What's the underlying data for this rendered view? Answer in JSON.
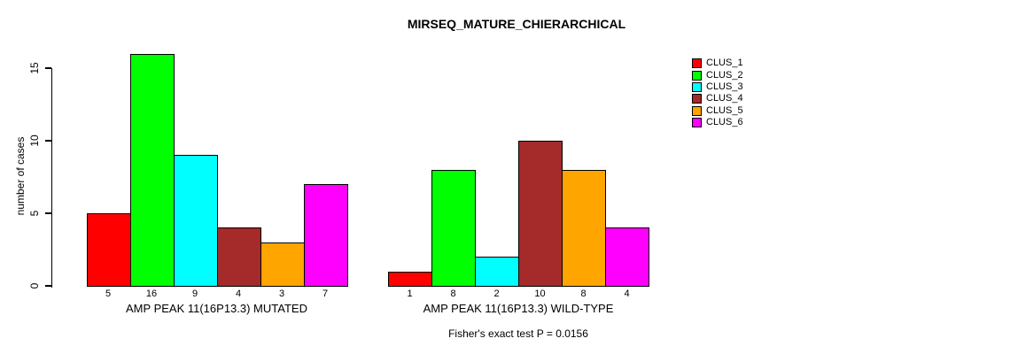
{
  "chart_data": {
    "type": "bar",
    "title": "MIRSEQ_MATURE_CHIERARCHICAL",
    "ylabel": "number of cases",
    "xlabel": "",
    "annotation": "Fisher's exact test P = 0.0156",
    "ylim": [
      0,
      15
    ],
    "yticks": [
      0,
      5,
      10,
      15
    ],
    "grid": false,
    "legend_position": "top-right",
    "bar_value_labels_shown": true,
    "categories": [
      "AMP PEAK 11(16P13.3) MUTATED",
      "AMP PEAK 11(16P13.3) WILD-TYPE"
    ],
    "series": [
      {
        "name": "CLUS_1",
        "color": "#FF0000",
        "values": [
          5,
          1
        ]
      },
      {
        "name": "CLUS_2",
        "color": "#00FF00",
        "values": [
          16,
          8
        ]
      },
      {
        "name": "CLUS_3",
        "color": "#00FFFF",
        "values": [
          9,
          2
        ]
      },
      {
        "name": "CLUS_4",
        "color": "#A52A2A",
        "values": [
          4,
          10
        ]
      },
      {
        "name": "CLUS_5",
        "color": "#FFA500",
        "values": [
          3,
          8
        ]
      },
      {
        "name": "CLUS_6",
        "color": "#FF00FF",
        "values": [
          7,
          4
        ]
      }
    ]
  }
}
